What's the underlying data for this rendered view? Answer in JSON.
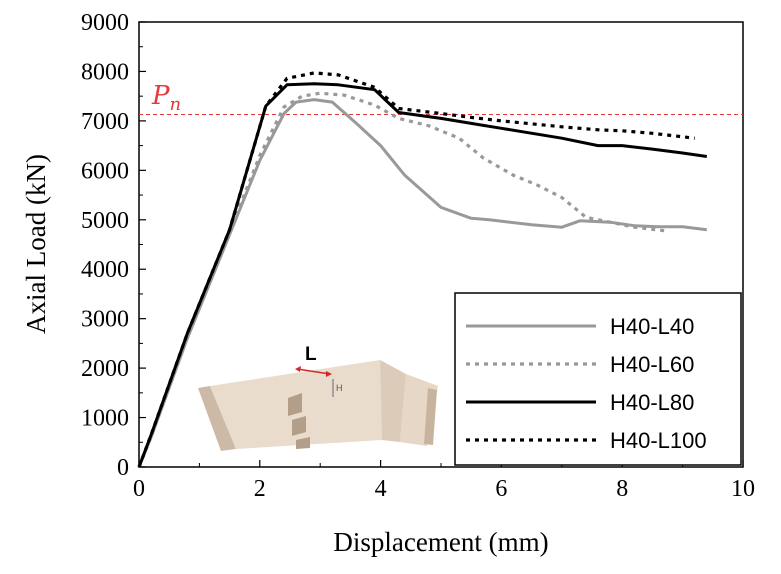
{
  "chart_data": {
    "type": "line",
    "xlabel": "Displacement (mm)",
    "ylabel": "Axial Load (kN)",
    "xlim": [
      0,
      10
    ],
    "ylim": [
      0,
      9000
    ],
    "xticks": [
      0,
      2,
      4,
      6,
      8,
      10
    ],
    "yticks": [
      0,
      1000,
      2000,
      3000,
      4000,
      5000,
      6000,
      7000,
      8000,
      9000
    ],
    "grid": false,
    "legend_position": "bottom-right",
    "reference_line": {
      "label_base": "P",
      "label_sub": "n",
      "y": 7130,
      "color": "#e8383b"
    },
    "series": [
      {
        "name": "H40-L40",
        "color": "#999999",
        "style": "solid",
        "x": [
          0,
          0.2,
          0.8,
          1.5,
          2.0,
          2.4,
          2.6,
          2.9,
          3.2,
          3.6,
          4.0,
          4.4,
          5.0,
          5.5,
          5.8,
          6.5,
          7.0,
          7.3,
          7.8,
          8.2,
          8.6,
          9.0,
          9.4
        ],
        "y": [
          0,
          600,
          2600,
          4700,
          6200,
          7150,
          7380,
          7430,
          7380,
          6950,
          6500,
          5900,
          5250,
          5030,
          5000,
          4900,
          4850,
          4980,
          4950,
          4880,
          4860,
          4860,
          4800
        ]
      },
      {
        "name": "H40-L60",
        "color": "#999999",
        "style": "dotted",
        "x": [
          0,
          0.2,
          0.8,
          1.5,
          2.0,
          2.4,
          2.7,
          3.0,
          3.4,
          3.9,
          4.3,
          4.8,
          5.3,
          5.7,
          6.2,
          6.6,
          7.0,
          7.4,
          7.8,
          8.2,
          8.7
        ],
        "y": [
          0,
          620,
          2650,
          4750,
          6300,
          7280,
          7500,
          7560,
          7520,
          7320,
          7050,
          6900,
          6650,
          6250,
          5900,
          5700,
          5450,
          5050,
          4950,
          4850,
          4780
        ]
      },
      {
        "name": "H40-L80",
        "color": "#000000",
        "style": "solid",
        "x": [
          0,
          0.2,
          0.8,
          1.5,
          2.1,
          2.45,
          2.9,
          3.3,
          3.9,
          4.3,
          5.0,
          5.5,
          6.0,
          7.0,
          7.6,
          8.0,
          8.5,
          9.0,
          9.4
        ],
        "y": [
          0,
          650,
          2700,
          4800,
          7300,
          7730,
          7750,
          7730,
          7630,
          7170,
          7050,
          6950,
          6850,
          6650,
          6500,
          6500,
          6430,
          6350,
          6280
        ]
      },
      {
        "name": "H40-L100",
        "color": "#000000",
        "style": "dotted",
        "x": [
          0,
          0.2,
          0.8,
          1.5,
          2.1,
          2.45,
          2.9,
          3.3,
          3.9,
          4.3,
          5.0,
          5.5,
          6.0,
          7.0,
          7.6,
          8.0,
          8.5,
          9.2
        ],
        "y": [
          0,
          650,
          2700,
          4800,
          7300,
          7860,
          7970,
          7930,
          7680,
          7250,
          7150,
          7070,
          7000,
          6880,
          6820,
          6800,
          6750,
          6650
        ]
      }
    ],
    "inset": {
      "label_L": "L",
      "label_H": "H"
    }
  }
}
